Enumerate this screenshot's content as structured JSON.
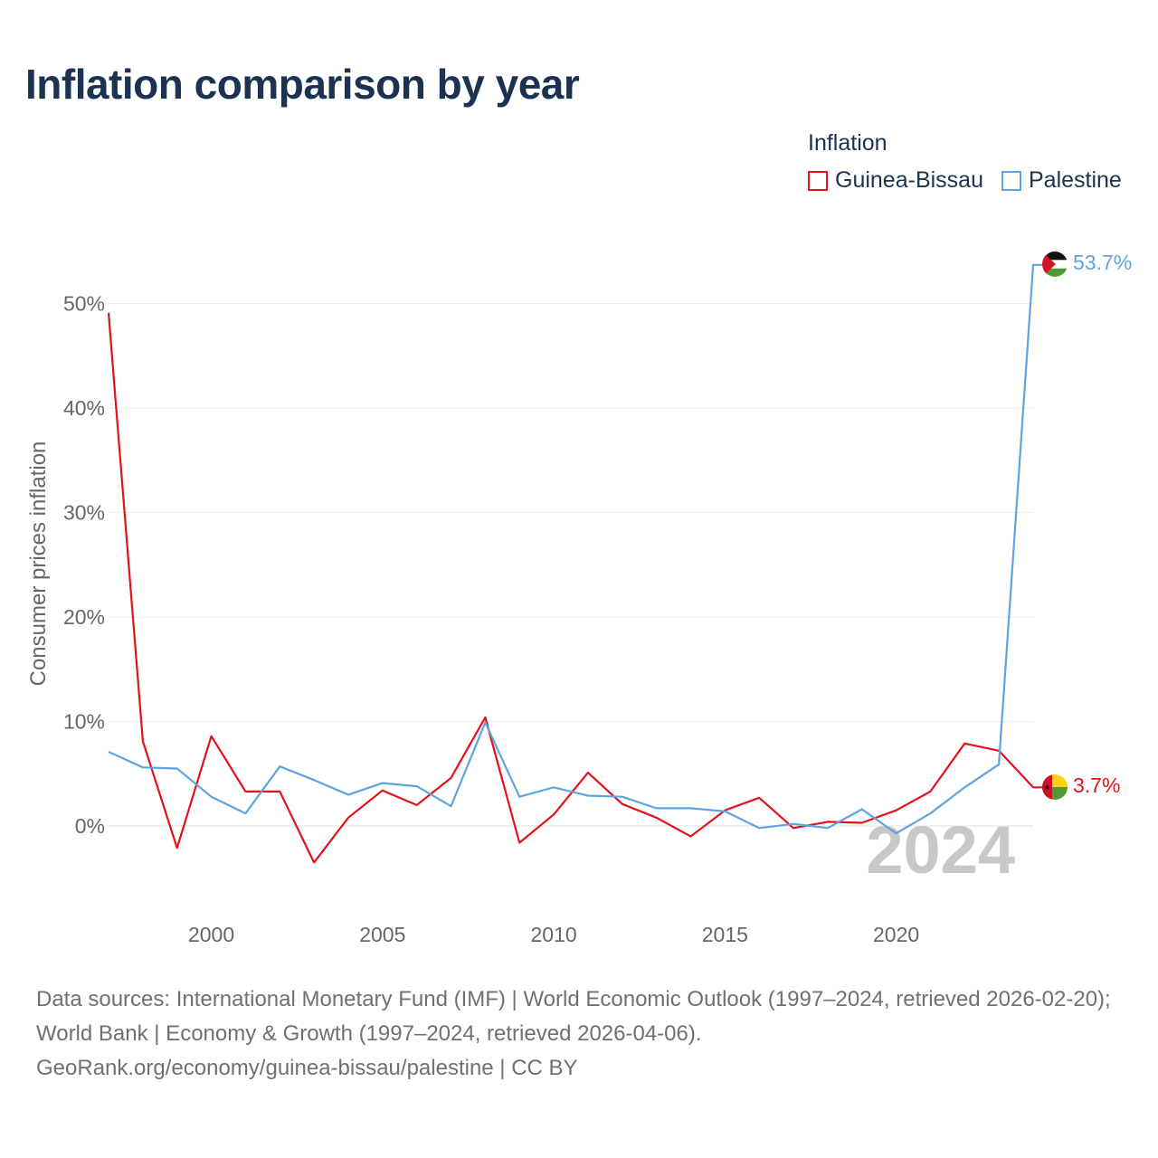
{
  "header": {
    "title": "Inflation comparison by year"
  },
  "legend": {
    "title": "Inflation",
    "items": [
      {
        "label": "Guinea-Bissau",
        "color": "#e3121a"
      },
      {
        "label": "Palestine",
        "color": "#5ea3e2"
      }
    ]
  },
  "chart_data": {
    "type": "line",
    "title": "Inflation comparison by year",
    "xlabel": "",
    "ylabel": "Consumer prices inflation",
    "xlim": [
      1997,
      2024
    ],
    "ylim": [
      -8,
      55
    ],
    "x_ticks": [
      2000,
      2005,
      2010,
      2015,
      2020
    ],
    "y_ticks": [
      0,
      10,
      20,
      30,
      40,
      50
    ],
    "y_tick_labels": [
      "0%",
      "10%",
      "20%",
      "30%",
      "40%",
      "50%"
    ],
    "grid": true,
    "current_year": "2024",
    "x": [
      1997,
      1998,
      1999,
      2000,
      2001,
      2002,
      2003,
      2004,
      2005,
      2006,
      2007,
      2008,
      2009,
      2010,
      2011,
      2012,
      2013,
      2014,
      2015,
      2016,
      2017,
      2018,
      2019,
      2020,
      2021,
      2022,
      2023,
      2024
    ],
    "series": [
      {
        "name": "Guinea-Bissau",
        "color": "#e3121a",
        "flag": "guinea-bissau-flag-icon",
        "end_label": "3.7%",
        "values": [
          49.1,
          8.1,
          -2.1,
          8.6,
          3.3,
          3.3,
          -3.5,
          0.8,
          3.4,
          2.0,
          4.6,
          10.4,
          -1.6,
          1.1,
          5.1,
          2.1,
          0.8,
          -1.0,
          1.5,
          2.7,
          -0.2,
          0.4,
          0.3,
          1.5,
          3.3,
          7.9,
          7.2,
          3.7
        ]
      },
      {
        "name": "Palestine",
        "color": "#5ea3e2",
        "flag": "palestine-flag-icon",
        "end_label": "53.7%",
        "values": [
          7.1,
          5.6,
          5.5,
          2.8,
          1.2,
          5.7,
          4.4,
          3.0,
          4.1,
          3.8,
          1.9,
          9.9,
          2.8,
          3.7,
          2.9,
          2.8,
          1.7,
          1.7,
          1.4,
          -0.2,
          0.2,
          -0.2,
          1.6,
          -0.7,
          1.2,
          3.7,
          5.9,
          53.7
        ]
      }
    ]
  },
  "footer": {
    "sources": "Data sources: International Monetary Fund (IMF) | World Economic Outlook (1997–2024, retrieved 2026-02-20); World Bank | Economy & Growth (1997–2024, retrieved 2026-04-06).",
    "credit": "GeoRank.org/economy/guinea-bissau/palestine | CC BY"
  }
}
